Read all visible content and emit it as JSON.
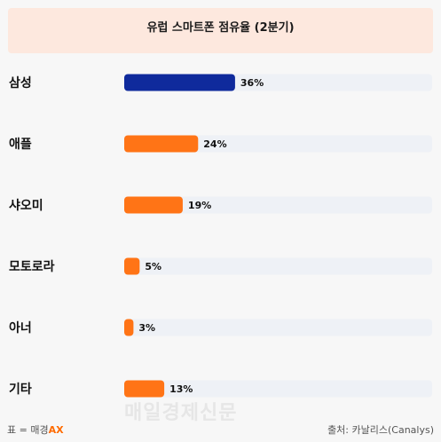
{
  "chart_data": {
    "type": "bar",
    "orientation": "horizontal",
    "title": "유럽 스마트폰 점유율 (2분기)",
    "categories": [
      "삼성",
      "애플",
      "샤오미",
      "모토로라",
      "아너",
      "기타"
    ],
    "values": [
      36,
      24,
      19,
      5,
      3,
      13
    ],
    "value_labels": [
      "36%",
      "24%",
      "19%",
      "5%",
      "3%",
      "13%"
    ],
    "xlim": [
      0,
      100
    ],
    "grid": false,
    "legend": "none",
    "colors": {
      "highlight": "#0f2a9c",
      "bar": "#ff7416",
      "track": "#eef1f6"
    }
  },
  "footer": {
    "left_prefix": "표 = 매경",
    "left_brand": "AX",
    "source": "출처: 카날리스(Canalys)",
    "watermark": "매일경제신문"
  }
}
